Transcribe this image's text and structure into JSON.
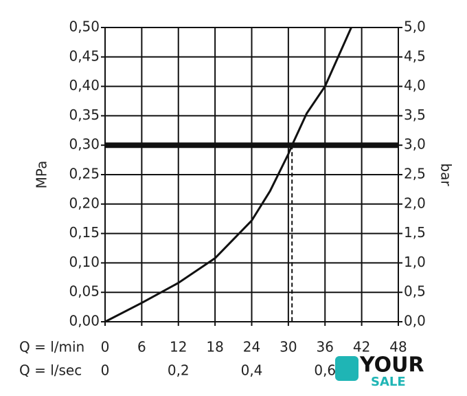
{
  "chart_data": {
    "type": "line",
    "ylabel": "MPa",
    "y2label": "bar",
    "xlabel": "Q = l/min",
    "x2label": "Q = l/sec",
    "xlim": [
      0,
      48
    ],
    "xticks": [
      0,
      6,
      12,
      18,
      24,
      30,
      36,
      42,
      48
    ],
    "x2lim": [
      0,
      0.8
    ],
    "x2ticks": [
      0,
      {
        "value": 0.2,
        "label": "0,2"
      },
      {
        "value": 0.4,
        "label": "0,4"
      },
      {
        "value": 0.6,
        "label": "0,6"
      }
    ],
    "ylim": [
      0,
      0.5
    ],
    "yticks": [
      {
        "value": 0,
        "label": "0,00"
      },
      {
        "value": 0.05,
        "label": "0,05"
      },
      {
        "value": 0.1,
        "label": "0,10"
      },
      {
        "value": 0.15,
        "label": "0,15"
      },
      {
        "value": 0.2,
        "label": "0,20"
      },
      {
        "value": 0.25,
        "label": "0,25"
      },
      {
        "value": 0.3,
        "label": "0,30"
      },
      {
        "value": 0.35,
        "label": "0,35"
      },
      {
        "value": 0.4,
        "label": "0,40"
      },
      {
        "value": 0.45,
        "label": "0,45"
      },
      {
        "value": 0.5,
        "label": "0,50"
      }
    ],
    "y2lim": [
      0,
      5
    ],
    "y2ticks": [
      {
        "value": 0,
        "label": "0,0"
      },
      {
        "value": 0.5,
        "label": "0,5"
      },
      {
        "value": 1,
        "label": "1,0"
      },
      {
        "value": 1.5,
        "label": "1,5"
      },
      {
        "value": 2,
        "label": "2,0"
      },
      {
        "value": 2.5,
        "label": "2,5"
      },
      {
        "value": 3,
        "label": "3,0"
      },
      {
        "value": 3.5,
        "label": "3,5"
      },
      {
        "value": 4,
        "label": "4,0"
      },
      {
        "value": 4.5,
        "label": "4,5"
      },
      {
        "value": 5,
        "label": "5,0"
      }
    ],
    "grid": true,
    "color": "#111111",
    "x": [
      0,
      6,
      12,
      18,
      24,
      27,
      30,
      30.6,
      33,
      36,
      40.3
    ],
    "values": [
      0,
      0.032,
      0.066,
      0.108,
      0.172,
      0.222,
      0.285,
      0.3,
      0.354,
      0.4,
      0.5
    ],
    "reference_y": 0.3,
    "reference_x": 30.6
  },
  "watermark": {
    "line1": "YOUR",
    "line2": "SALE"
  }
}
